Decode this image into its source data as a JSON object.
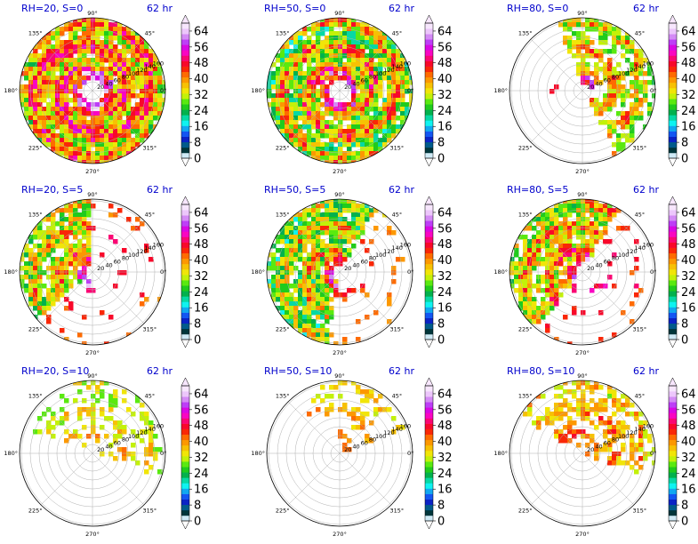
{
  "figure": {
    "time_label": "62 hr"
  },
  "colorbar": {
    "ticks": [
      "0",
      "8",
      "16",
      "24",
      "32",
      "40",
      "48",
      "56",
      "64"
    ],
    "range": [
      0,
      68
    ],
    "colors": [
      "#cfeaf6",
      "#00363b",
      "#015b8b",
      "#0b23c5",
      "#1356f2",
      "#11a8f0",
      "#0ff3f0",
      "#07d8a4",
      "#03b14d",
      "#20cb1d",
      "#5ae910",
      "#c3f109",
      "#f1e508",
      "#f7c104",
      "#fc9801",
      "#fe6b00",
      "#f92707",
      "#f8082a",
      "#fa0673",
      "#f905c2",
      "#d907e3",
      "#bd3ef7",
      "#d48bf5",
      "#ecc6fb",
      "#f7e6fd"
    ]
  },
  "angle_labels": [
    "90°",
    "45°",
    "0°",
    "315°",
    "270°",
    "225°",
    "180°",
    "135°"
  ],
  "radius_labels": [
    "20",
    "40",
    "60",
    "80",
    "100",
    "120",
    "140",
    "160"
  ],
  "panels": [
    {
      "title": "RH=20, S=0"
    },
    {
      "title": "RH=50, S=0"
    },
    {
      "title": "RH=80, S=0"
    },
    {
      "title": "RH=20, S=5"
    },
    {
      "title": "RH=50, S=5"
    },
    {
      "title": "RH=80, S=5"
    },
    {
      "title": "RH=20, S=10"
    },
    {
      "title": "RH=50, S=10"
    },
    {
      "title": "RH=80, S=10"
    }
  ],
  "chart_data": {
    "type": "heatmap",
    "projection": "polar",
    "grid": true,
    "radial_ticks": [
      20,
      40,
      60,
      80,
      100,
      120,
      140,
      160
    ],
    "angular_ticks_deg": [
      0,
      45,
      90,
      135,
      180,
      225,
      270,
      315
    ],
    "color_scale": {
      "min": 0,
      "max": 68,
      "ticks": [
        0,
        8,
        16,
        24,
        32,
        40,
        48,
        56,
        64
      ]
    },
    "panels": [
      {
        "title": "RH=20, S=0"
      },
      {
        "title": "RH=50, S=0"
      },
      {
        "title": "RH=80, S=0"
      },
      {
        "title": "RH=20, S=5"
      },
      {
        "title": "RH=50, S=5"
      },
      {
        "title": "RH=80, S=5"
      },
      {
        "title": "RH=20, S=10"
      },
      {
        "title": "RH=50, S=10"
      },
      {
        "title": "RH=80, S=10"
      }
    ]
  }
}
